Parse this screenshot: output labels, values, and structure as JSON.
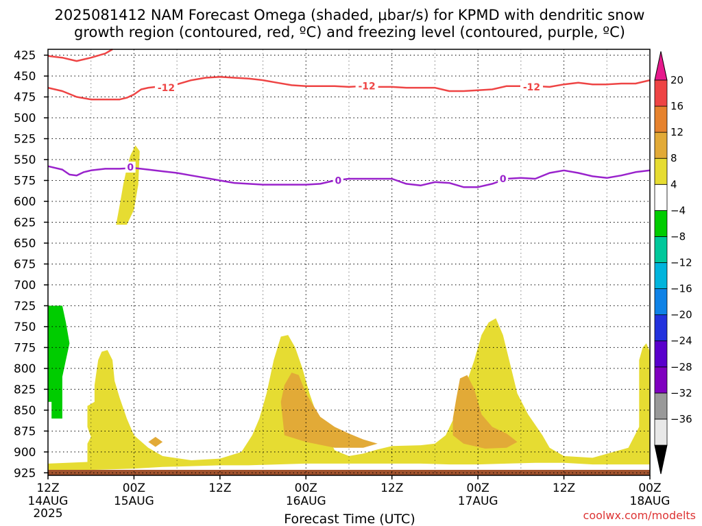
{
  "chart_data": {
    "type": "heatmap",
    "title_line1": "2025081412 NAM Forecast Omega (shaded, μbar/s) for KPMD with dendritic snow",
    "title_line2": "growth region (contoured, red, ºC) and freezing level (contoured, purple, ºC)",
    "xlabel": "Forecast Time (UTC)",
    "credit": "coolwx.com/modelts",
    "colors": {
      "red_contour": "#ee4444",
      "purple_contour": "#9922cc",
      "ground": "#a0522d",
      "shade_4_8": "#e6dc32",
      "shade_8_12": "#e2aa37",
      "green": "#00cc00"
    },
    "x_ticks": [
      {
        "hour": 0,
        "label": "12Z",
        "sub1": "14AUG",
        "sub2": "2025"
      },
      {
        "hour": 12,
        "label": "00Z",
        "sub1": "15AUG",
        "sub2": ""
      },
      {
        "hour": 24,
        "label": "12Z",
        "sub1": "",
        "sub2": ""
      },
      {
        "hour": 36,
        "label": "00Z",
        "sub1": "16AUG",
        "sub2": ""
      },
      {
        "hour": 48,
        "label": "12Z",
        "sub1": "",
        "sub2": ""
      },
      {
        "hour": 60,
        "label": "00Z",
        "sub1": "17AUG",
        "sub2": ""
      },
      {
        "hour": 72,
        "label": "12Z",
        "sub1": "",
        "sub2": ""
      },
      {
        "hour": 84,
        "label": "00Z",
        "sub1": "18AUG",
        "sub2": ""
      }
    ],
    "y_ticks": [
      425,
      450,
      475,
      500,
      525,
      550,
      575,
      600,
      625,
      650,
      675,
      700,
      725,
      750,
      775,
      800,
      825,
      850,
      875,
      900,
      925
    ],
    "colorbar": {
      "labels": [
        "20",
        "16",
        "12",
        "8",
        "4",
        "−4",
        "−8",
        "−12",
        "−16",
        "−20",
        "−24",
        "−28",
        "−32",
        "−36"
      ],
      "colors": [
        "#e8e8e8",
        "#999999",
        "#7f00bf",
        "#5a00cc",
        "#2332dd",
        "#0f82e6",
        "#00b4dc",
        "#00c89b",
        "#00cc00",
        "#ffffff",
        "#e6dc32",
        "#e2aa37",
        "#e6822d",
        "#ee4444"
      ]
    },
    "contours": [
      {
        "label": "-12",
        "color": "#ee4444",
        "points": [
          [
            0,
            426
          ],
          [
            2,
            428
          ],
          [
            4,
            432
          ],
          [
            6,
            428
          ],
          [
            8,
            423
          ],
          [
            9,
            418
          ]
        ],
        "labels_at": []
      },
      {
        "label": "-12",
        "color": "#ee4444",
        "points": [
          [
            0,
            464
          ],
          [
            2,
            468
          ],
          [
            4,
            475
          ],
          [
            6,
            478
          ],
          [
            8,
            478
          ],
          [
            10,
            478
          ],
          [
            11,
            476
          ],
          [
            12,
            472
          ],
          [
            13,
            466
          ],
          [
            14,
            464
          ],
          [
            16,
            462
          ],
          [
            18,
            460
          ],
          [
            20,
            455
          ],
          [
            22,
            452
          ],
          [
            24,
            451
          ],
          [
            26,
            452
          ],
          [
            28,
            453
          ],
          [
            30,
            455
          ],
          [
            32,
            458
          ],
          [
            34,
            461
          ],
          [
            36,
            462
          ],
          [
            38,
            462
          ],
          [
            40,
            462
          ],
          [
            42,
            463
          ],
          [
            44,
            462
          ],
          [
            46,
            463
          ],
          [
            48,
            463
          ],
          [
            50,
            464
          ],
          [
            52,
            464
          ],
          [
            54,
            464
          ],
          [
            56,
            468
          ],
          [
            58,
            468
          ],
          [
            60,
            467
          ],
          [
            62,
            466
          ],
          [
            64,
            462
          ],
          [
            66,
            462
          ],
          [
            68,
            462
          ],
          [
            70,
            463
          ],
          [
            72,
            460
          ],
          [
            74,
            458
          ],
          [
            76,
            460
          ],
          [
            78,
            460
          ],
          [
            80,
            459
          ],
          [
            82,
            459
          ],
          [
            84,
            455
          ]
        ],
        "labels_at": [
          [
            16.5,
            464
          ],
          [
            44.5,
            462
          ],
          [
            67.5,
            463
          ]
        ]
      },
      {
        "label": "0",
        "color": "#9922cc",
        "points": [
          [
            0,
            558
          ],
          [
            2,
            562
          ],
          [
            3,
            568
          ],
          [
            4,
            569
          ],
          [
            5,
            565
          ],
          [
            6,
            563
          ],
          [
            8,
            561
          ],
          [
            10,
            561
          ],
          [
            12,
            560
          ],
          [
            14,
            562
          ],
          [
            16,
            564
          ],
          [
            18,
            566
          ],
          [
            20,
            569
          ],
          [
            22,
            572
          ],
          [
            24,
            575
          ],
          [
            26,
            578
          ],
          [
            28,
            579
          ],
          [
            30,
            580
          ],
          [
            32,
            580
          ],
          [
            34,
            580
          ],
          [
            36,
            580
          ],
          [
            38,
            579
          ],
          [
            40,
            575
          ],
          [
            42,
            573
          ],
          [
            44,
            573
          ],
          [
            46,
            573
          ],
          [
            48,
            573
          ],
          [
            50,
            579
          ],
          [
            52,
            581
          ],
          [
            54,
            577
          ],
          [
            56,
            578
          ],
          [
            58,
            583
          ],
          [
            60,
            583
          ],
          [
            62,
            579
          ],
          [
            64,
            573
          ],
          [
            66,
            572
          ],
          [
            68,
            573
          ],
          [
            70,
            566
          ],
          [
            72,
            563
          ],
          [
            74,
            566
          ],
          [
            76,
            570
          ],
          [
            78,
            572
          ],
          [
            80,
            569
          ],
          [
            82,
            565
          ],
          [
            84,
            563
          ]
        ],
        "labels_at": [
          [
            11.5,
            559
          ],
          [
            40.5,
            575
          ],
          [
            63.5,
            573
          ]
        ]
      }
    ],
    "regions": [
      {
        "value": "4 to 8",
        "color": "#e6dc32",
        "points": [
          [
            0,
            923
          ],
          [
            4,
            922
          ],
          [
            8,
            921
          ],
          [
            12,
            920
          ],
          [
            16,
            918
          ],
          [
            20,
            917
          ],
          [
            24,
            916
          ],
          [
            28,
            916
          ],
          [
            32,
            915
          ],
          [
            36,
            914
          ],
          [
            40,
            914
          ],
          [
            44,
            914
          ],
          [
            48,
            914
          ],
          [
            52,
            914
          ],
          [
            56,
            915
          ],
          [
            60,
            915
          ],
          [
            64,
            914
          ],
          [
            68,
            913
          ],
          [
            72,
            913
          ],
          [
            76,
            915
          ],
          [
            80,
            915
          ],
          [
            84,
            915
          ],
          [
            84,
            780
          ],
          [
            83.5,
            770
          ],
          [
            83,
            775
          ],
          [
            82.5,
            790
          ],
          [
            82.5,
            870
          ],
          [
            81,
            895
          ],
          [
            76,
            907
          ],
          [
            72,
            905
          ],
          [
            70,
            895
          ],
          [
            69,
            880
          ],
          [
            67,
            855
          ],
          [
            65.5,
            830
          ],
          [
            64.5,
            795
          ],
          [
            63.5,
            760
          ],
          [
            62.5,
            740
          ],
          [
            61.5,
            745
          ],
          [
            60.5,
            760
          ],
          [
            59.5,
            790
          ],
          [
            58.5,
            815
          ],
          [
            57.5,
            835
          ],
          [
            56.5,
            862
          ],
          [
            55.5,
            880
          ],
          [
            54,
            890
          ],
          [
            52,
            892
          ],
          [
            48,
            893
          ],
          [
            46,
            897
          ],
          [
            44,
            902
          ],
          [
            42,
            905
          ],
          [
            40,
            898
          ],
          [
            39,
            880
          ],
          [
            37.5,
            855
          ],
          [
            36.5,
            830
          ],
          [
            35.5,
            800
          ],
          [
            34.5,
            775
          ],
          [
            33.5,
            760
          ],
          [
            32.5,
            762
          ],
          [
            31.5,
            790
          ],
          [
            30.5,
            830
          ],
          [
            29.5,
            860
          ],
          [
            28.5,
            880
          ],
          [
            27,
            900
          ],
          [
            24,
            908
          ],
          [
            20,
            910
          ],
          [
            16,
            905
          ],
          [
            14,
            895
          ],
          [
            12,
            880
          ],
          [
            11,
            860
          ],
          [
            10,
            835
          ],
          [
            9.3,
            815
          ],
          [
            9,
            790
          ],
          [
            8.3,
            778
          ],
          [
            7.5,
            780
          ],
          [
            7,
            790
          ],
          [
            6.5,
            820
          ],
          [
            6.5,
            840
          ],
          [
            5.5,
            845
          ],
          [
            5.5,
            870
          ],
          [
            6,
            882
          ],
          [
            5.5,
            890
          ],
          [
            5.5,
            912
          ],
          [
            0,
            914
          ]
        ]
      },
      {
        "value": "4 to 8",
        "color": "#e6dc32",
        "points": [
          [
            9.5,
            628
          ],
          [
            10,
            605
          ],
          [
            10.5,
            580
          ],
          [
            11,
            560
          ],
          [
            11.5,
            545
          ],
          [
            12.2,
            533
          ],
          [
            12.8,
            540
          ],
          [
            12.6,
            580
          ],
          [
            12,
            610
          ],
          [
            11,
            628
          ]
        ]
      },
      {
        "value": "8 to 12",
        "color": "#e2aa37",
        "points": [
          [
            32.5,
            840
          ],
          [
            33,
            820
          ],
          [
            34,
            805
          ],
          [
            35,
            808
          ],
          [
            36,
            830
          ],
          [
            38,
            858
          ],
          [
            40,
            870
          ],
          [
            42,
            878
          ],
          [
            44,
            885
          ],
          [
            46,
            890
          ],
          [
            44,
            895
          ],
          [
            40,
            895
          ],
          [
            36,
            888
          ],
          [
            33,
            880
          ]
        ]
      },
      {
        "value": "8 to 12",
        "color": "#e2aa37",
        "points": [
          [
            56.5,
            860
          ],
          [
            57,
            835
          ],
          [
            57.5,
            812
          ],
          [
            58.5,
            808
          ],
          [
            59.5,
            825
          ],
          [
            60.5,
            855
          ],
          [
            62,
            870
          ],
          [
            64,
            878
          ],
          [
            65.5,
            888
          ],
          [
            64,
            895
          ],
          [
            61,
            896
          ],
          [
            58,
            890
          ],
          [
            56.5,
            880
          ]
        ]
      },
      {
        "value": "8 to 12",
        "color": "#e2aa37",
        "points": [
          [
            14,
            888
          ],
          [
            15,
            882
          ],
          [
            16,
            888
          ],
          [
            15,
            894
          ]
        ]
      },
      {
        "value": "-8 to -4",
        "color": "#00cc00",
        "points": [
          [
            0,
            725
          ],
          [
            2,
            725
          ],
          [
            2.5,
            745
          ],
          [
            3,
            770
          ],
          [
            2.5,
            790
          ],
          [
            2,
            810
          ],
          [
            2,
            860
          ],
          [
            0.5,
            860
          ],
          [
            0.5,
            840
          ],
          [
            0,
            840
          ]
        ]
      }
    ]
  }
}
